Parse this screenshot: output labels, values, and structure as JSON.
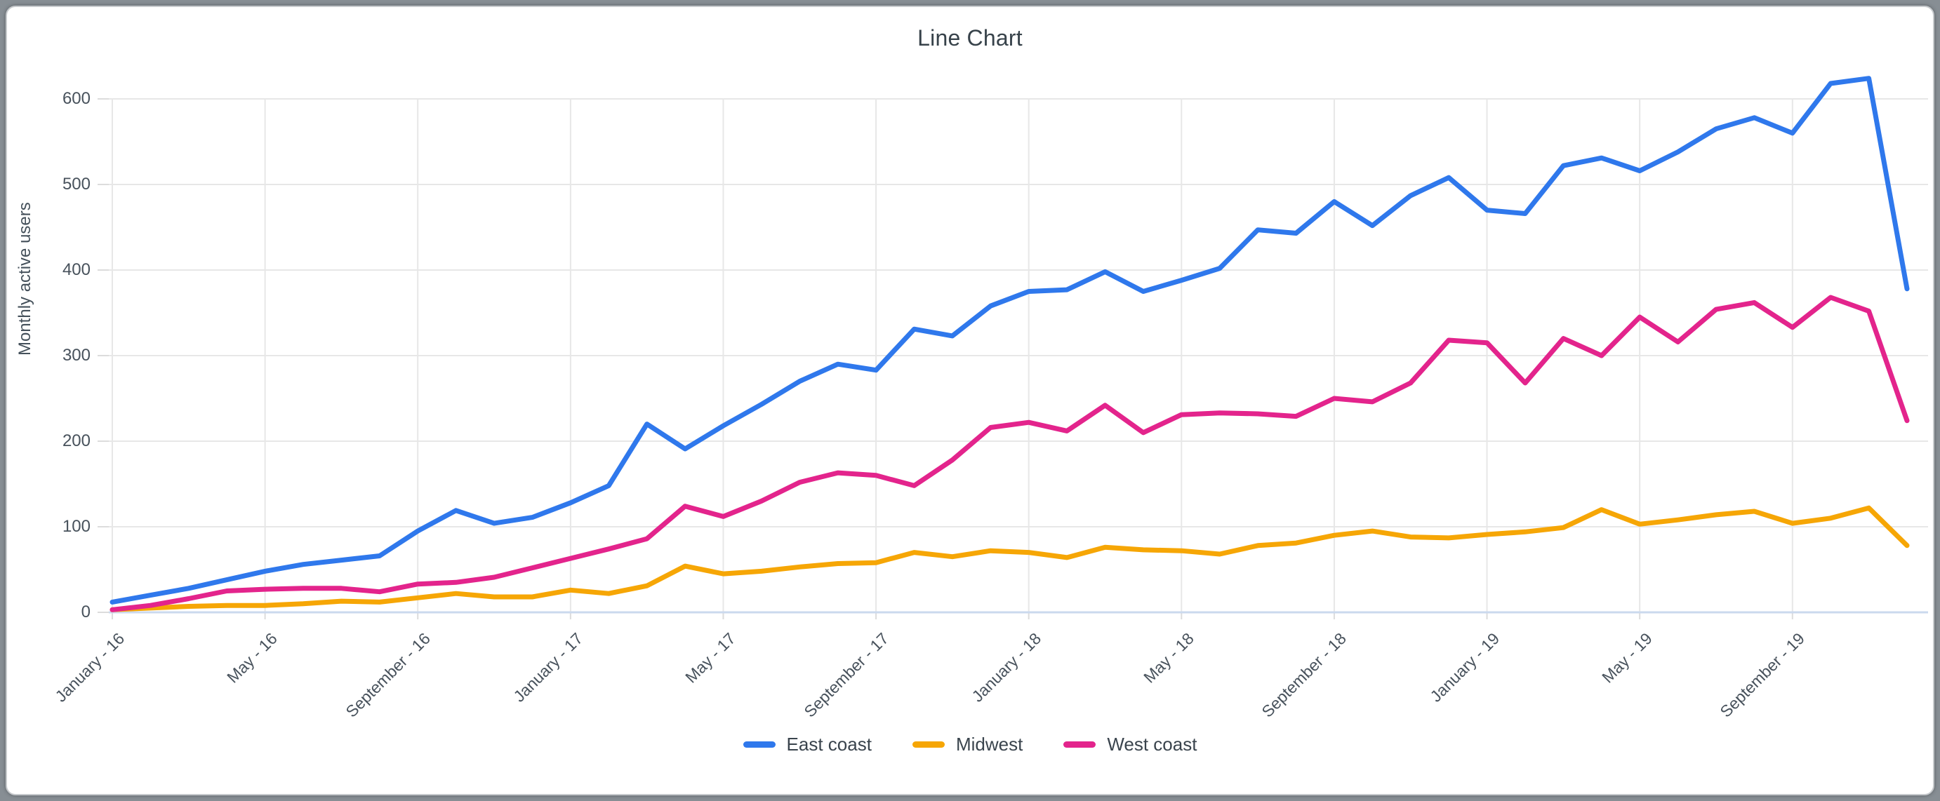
{
  "title": "Line Chart",
  "y_axis": {
    "label": "Monthly active users",
    "ticks": [
      0,
      100,
      200,
      300,
      400,
      500,
      600
    ]
  },
  "x_axis": {
    "tick_labels": [
      "January - 16",
      "May - 16",
      "September - 16",
      "January - 17",
      "May - 17",
      "September - 17",
      "January - 18",
      "May - 18",
      "September - 18",
      "January - 19",
      "May - 19",
      "September - 19"
    ],
    "ticks_every_n_months": 4
  },
  "legend": {
    "items": [
      {
        "label": "East coast",
        "color": "#2f78ec"
      },
      {
        "label": "Midwest",
        "color": "#f6a605"
      },
      {
        "label": "West coast",
        "color": "#e3248c"
      }
    ]
  },
  "chart_data": {
    "type": "line",
    "title": "Line Chart",
    "xlabel": "",
    "ylabel": "Monthly active users",
    "x_description": "48 monthly points, January 2016 through December 2019",
    "x_tick_labels": [
      "January - 16",
      "May - 16",
      "September - 16",
      "January - 17",
      "May - 17",
      "September - 17",
      "January - 18",
      "May - 18",
      "September - 18",
      "January - 19",
      "May - 19",
      "September - 19"
    ],
    "ylim": [
      0,
      600
    ],
    "grid": true,
    "legend_position": "bottom",
    "series": [
      {
        "name": "East coast",
        "color": "#2f78ec",
        "values": [
          12,
          20,
          28,
          38,
          48,
          56,
          61,
          66,
          95,
          119,
          104,
          111,
          128,
          148,
          220,
          191,
          218,
          243,
          270,
          290,
          283,
          331,
          323,
          358,
          375,
          377,
          398,
          375,
          388,
          402,
          447,
          443,
          480,
          452,
          487,
          508,
          470,
          466,
          522,
          531,
          516,
          538,
          565,
          578,
          560,
          618,
          624,
          378
        ]
      },
      {
        "name": "Midwest",
        "color": "#f6a605",
        "values": [
          3,
          5,
          7,
          8,
          8,
          10,
          13,
          12,
          17,
          22,
          18,
          18,
          26,
          22,
          31,
          54,
          45,
          48,
          53,
          57,
          58,
          70,
          65,
          72,
          70,
          64,
          76,
          73,
          72,
          68,
          78,
          81,
          90,
          95,
          88,
          87,
          91,
          94,
          99,
          120,
          103,
          108,
          114,
          118,
          104,
          110,
          122,
          78
        ]
      },
      {
        "name": "West coast",
        "color": "#e3248c",
        "values": [
          3,
          8,
          16,
          25,
          27,
          28,
          28,
          24,
          33,
          35,
          41,
          52,
          63,
          74,
          86,
          124,
          112,
          130,
          152,
          163,
          160,
          148,
          178,
          216,
          222,
          212,
          242,
          210,
          231,
          233,
          232,
          229,
          250,
          246,
          268,
          318,
          315,
          268,
          320,
          300,
          345,
          316,
          354,
          362,
          333,
          368,
          352,
          224
        ]
      }
    ]
  },
  "style": {
    "gridline_color": "#e7e7e7",
    "baseline_color": "#cbd9ee",
    "tick_color": "#dcdcdc",
    "title_color": "#37424a",
    "label_color": "#48525c"
  }
}
